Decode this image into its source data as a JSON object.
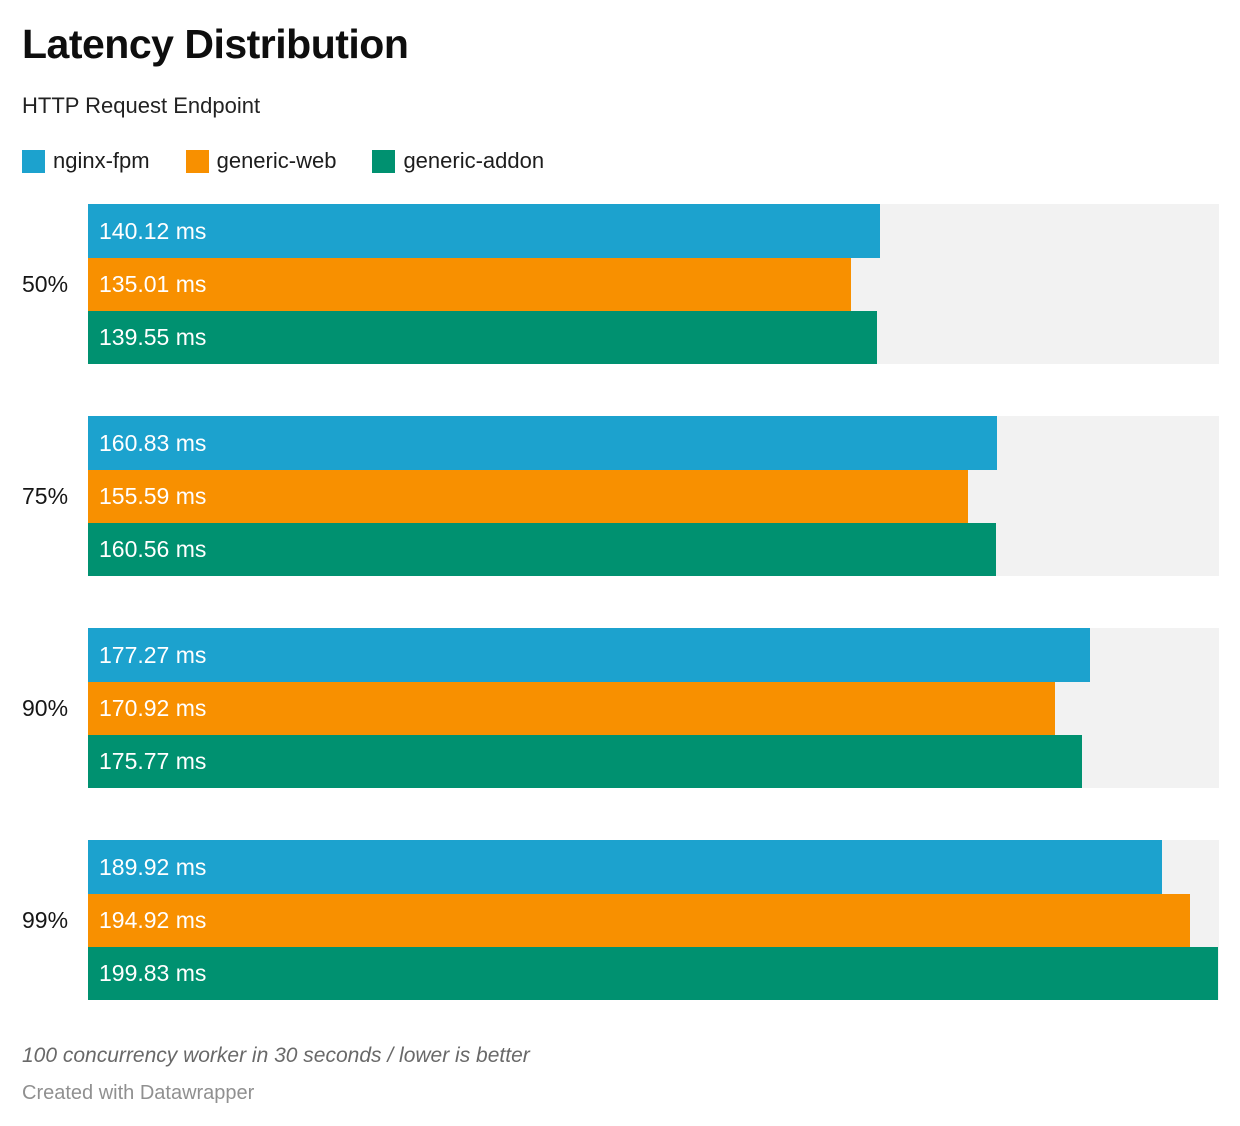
{
  "header": {
    "title": "Latency Distribution",
    "subtitle": "HTTP Request Endpoint"
  },
  "legend": {
    "items": [
      {
        "label": "nginx-fpm",
        "color": "#1CA2CE"
      },
      {
        "label": "generic-web",
        "color": "#F89000"
      },
      {
        "label": "generic-addon",
        "color": "#009170"
      }
    ]
  },
  "chart_data": {
    "type": "bar",
    "orientation": "horizontal",
    "title": "Latency Distribution",
    "subtitle": "HTTP Request Endpoint",
    "categories": [
      "50%",
      "75%",
      "90%",
      "99%"
    ],
    "series": [
      {
        "name": "nginx-fpm",
        "color": "#1CA2CE",
        "values": [
          140.12,
          160.83,
          177.27,
          189.92
        ]
      },
      {
        "name": "generic-web",
        "color": "#F89000",
        "values": [
          135.01,
          155.59,
          170.92,
          194.92
        ]
      },
      {
        "name": "generic-addon",
        "color": "#009170",
        "values": [
          139.55,
          160.56,
          175.77,
          199.83
        ]
      }
    ],
    "value_suffix": " ms",
    "value_decimals": 2,
    "xlim": [
      0,
      200
    ],
    "grid": false,
    "legend_position": "top",
    "track_color": "#F2F2F2",
    "label_color_on_bar": "#FFFFFF"
  },
  "footer": {
    "note": "100 concurrency worker in 30 seconds / lower is better",
    "attribution": "Created with Datawrapper"
  }
}
